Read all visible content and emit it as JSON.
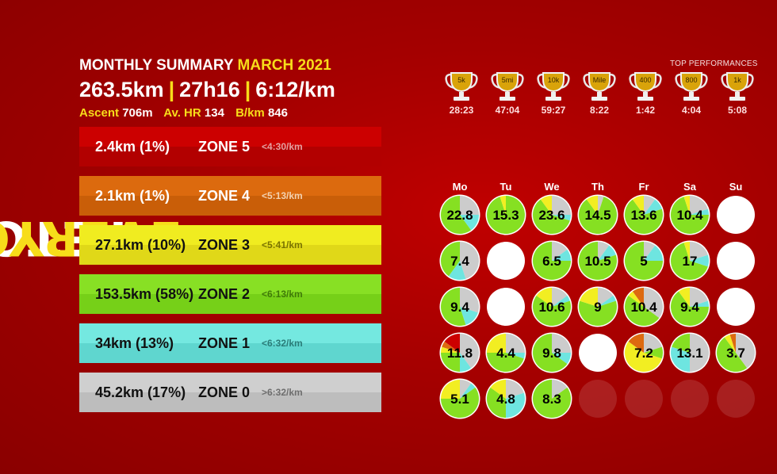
{
  "logo": {
    "part1": "FETCH",
    "part2": "EVERYONE"
  },
  "summary": {
    "title": "MONTHLY SUMMARY",
    "month": "MARCH 2021",
    "distance": "263.5km",
    "time": "27h16",
    "pace": "6:12/km",
    "separator": "|",
    "ascent_label": "Ascent",
    "ascent": "706m",
    "hr_label": "Av. HR",
    "hr": "134",
    "bkm_label": "B/km",
    "bkm": "846"
  },
  "zones": [
    {
      "dist": "2.4km (1%)",
      "zone": "ZONE 5",
      "pace": "<4:30/km",
      "bg": "#cc0000",
      "bg2": "#b20000",
      "text": "#ffffff",
      "pace_color": "#e5a0a0"
    },
    {
      "dist": "2.1km (1%)",
      "zone": "ZONE 4",
      "pace": "<5:13/km",
      "bg": "#dc6a0e",
      "bg2": "#c95e08",
      "text": "#ffffff",
      "pace_color": "#f3d2b0"
    },
    {
      "dist": "27.1km (10%)",
      "zone": "ZONE 3",
      "pace": "<5:41/km",
      "bg": "#f0ec20",
      "bg2": "#e0d818",
      "text": "#111111",
      "pace_color": "#7a7300"
    },
    {
      "dist": "153.5km (58%)",
      "zone": "ZONE 2",
      "pace": "<6:13/km",
      "bg": "#88e024",
      "bg2": "#76d018",
      "text": "#111111",
      "pace_color": "#3f7a08"
    },
    {
      "dist": "34km (13%)",
      "zone": "ZONE 1",
      "pace": "<6:32/km",
      "bg": "#74e8e0",
      "bg2": "#5fd6cf",
      "text": "#111111",
      "pace_color": "#2a7c78"
    },
    {
      "dist": "45.2km (17%)",
      "zone": "ZONE 0",
      "pace": ">6:32/km",
      "bg": "#cfcfcf",
      "bg2": "#bdbdbd",
      "text": "#111111",
      "pace_color": "#6e6e6e"
    }
  ],
  "top_performances": {
    "title": "TOP PERFORMANCES",
    "items": [
      {
        "label": "5k",
        "time": "28:23"
      },
      {
        "label": "5mi",
        "time": "47:04"
      },
      {
        "label": "10k",
        "time": "59:27"
      },
      {
        "label": "Mile",
        "time": "8:22"
      },
      {
        "label": "400",
        "time": "1:42"
      },
      {
        "label": "800",
        "time": "4:04"
      },
      {
        "label": "1k",
        "time": "5:08"
      }
    ]
  },
  "calendar": {
    "days": [
      "Mo",
      "Tu",
      "We",
      "Th",
      "Fr",
      "Sa",
      "Su"
    ],
    "colors": {
      "z0": "#cccccc",
      "z1": "#6ee5e0",
      "z2": "#86e022",
      "z3": "#f2ee22",
      "z4": "#dd6a10",
      "z5": "#cc0000"
    },
    "weeks": [
      [
        {
          "label": "22.8",
          "z": [
            0.25,
            0.15,
            0.6,
            0,
            0,
            0
          ]
        },
        {
          "label": "15.3",
          "z": [
            0,
            0,
            0.95,
            0.05,
            0,
            0
          ]
        },
        {
          "label": "23.6",
          "z": [
            0.25,
            0.05,
            0.6,
            0.1,
            0,
            0
          ]
        },
        {
          "label": "14.5",
          "z": [
            0.05,
            0,
            0.85,
            0.1,
            0,
            0
          ]
        },
        {
          "label": "13.6",
          "z": [
            0.1,
            0.1,
            0.7,
            0.1,
            0,
            0
          ]
        },
        {
          "label": "10.4",
          "z": [
            0.2,
            0.05,
            0.7,
            0.05,
            0,
            0
          ]
        },
        {
          "label": "",
          "z": []
        }
      ],
      [
        {
          "label": "7.4",
          "z": [
            0.45,
            0.15,
            0.4,
            0,
            0,
            0
          ]
        },
        {
          "label": "",
          "z": []
        },
        {
          "label": "6.5",
          "z": [
            0.15,
            0.1,
            0.75,
            0,
            0,
            0
          ]
        },
        {
          "label": "10.5",
          "z": [
            0.1,
            0.1,
            0.8,
            0,
            0,
            0
          ]
        },
        {
          "label": "5",
          "z": [
            0.1,
            0.15,
            0.75,
            0,
            0,
            0
          ]
        },
        {
          "label": "17",
          "z": [
            0.2,
            0.1,
            0.65,
            0.05,
            0,
            0
          ]
        },
        {
          "label": "",
          "z": []
        }
      ],
      [
        {
          "label": "9.4",
          "z": [
            0.3,
            0.15,
            0.55,
            0,
            0,
            0
          ]
        },
        {
          "label": "",
          "z": []
        },
        {
          "label": "10.6",
          "z": [
            0.15,
            0.05,
            0.65,
            0.15,
            0,
            0
          ]
        },
        {
          "label": "9",
          "z": [
            0.15,
            0.05,
            0.6,
            0.2,
            0,
            0
          ]
        },
        {
          "label": "10.4",
          "z": [
            0.35,
            0,
            0.5,
            0.05,
            0.1,
            0
          ]
        },
        {
          "label": "9.4",
          "z": [
            0.2,
            0.05,
            0.65,
            0.1,
            0,
            0
          ]
        },
        {
          "label": "",
          "z": []
        }
      ],
      [
        {
          "label": "11.8",
          "z": [
            0.4,
            0.1,
            0.25,
            0.05,
            0.05,
            0.15
          ]
        },
        {
          "label": "4.4",
          "z": [
            0.25,
            0.05,
            0.45,
            0.25,
            0,
            0
          ]
        },
        {
          "label": "9.8",
          "z": [
            0.25,
            0.1,
            0.65,
            0,
            0,
            0
          ]
        },
        {
          "label": "",
          "z": []
        },
        {
          "label": "7.2",
          "z": [
            0.2,
            0,
            0.1,
            0.55,
            0.15,
            0
          ]
        },
        {
          "label": "13.1",
          "z": [
            0.5,
            0.3,
            0.2,
            0,
            0,
            0
          ]
        },
        {
          "label": "3.7",
          "z": [
            0.4,
            0,
            0.5,
            0.05,
            0.05,
            0
          ]
        }
      ],
      [
        {
          "label": "5.1",
          "z": [
            0.1,
            0.05,
            0.6,
            0.25,
            0,
            0
          ]
        },
        {
          "label": "4.8",
          "z": [
            0.2,
            0.3,
            0.35,
            0.15,
            0,
            0
          ]
        },
        {
          "label": "8.3",
          "z": [
            0.15,
            0,
            0.85,
            0,
            0,
            0
          ]
        },
        {
          "label": "",
          "z": [],
          "outside": true
        },
        {
          "label": "",
          "z": [],
          "outside": true
        },
        {
          "label": "",
          "z": [],
          "outside": true
        },
        {
          "label": "",
          "z": [],
          "outside": true
        }
      ]
    ]
  },
  "icons": {
    "trophy": "trophy-icon"
  }
}
